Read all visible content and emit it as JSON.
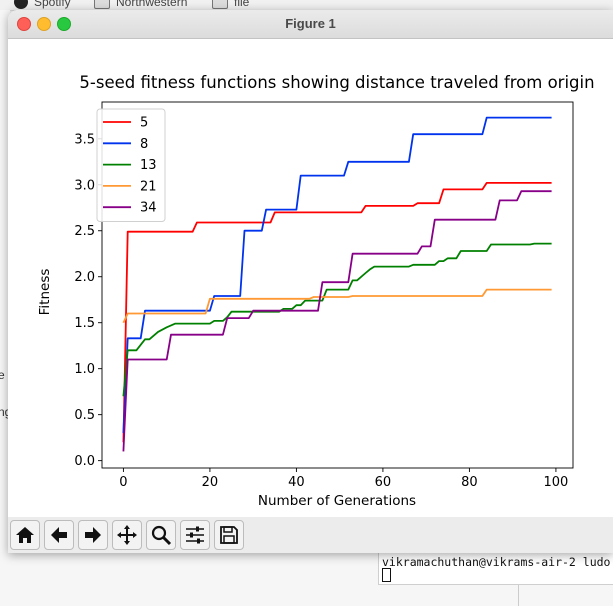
{
  "background": {
    "bookmarks": [
      "Spotify",
      "Northwestern",
      "file"
    ],
    "side_fragments": [
      "e",
      "ng"
    ],
    "terminal_prompt": "vikramachuthan@vikrams-air-2 ludo"
  },
  "window": {
    "title": "Figure 1"
  },
  "toolbar": {
    "buttons": [
      {
        "name": "home-icon"
      },
      {
        "name": "back-arrow-icon"
      },
      {
        "name": "forward-arrow-icon"
      },
      {
        "name": "pan-icon"
      },
      {
        "name": "zoom-icon"
      },
      {
        "name": "configure-subplots-icon"
      },
      {
        "name": "save-icon"
      }
    ]
  },
  "chart_data": {
    "type": "line",
    "title": "5-seed fitness functions showing distance traveled from origin",
    "xlabel": "Number of Generations",
    "ylabel": "Fitness",
    "xlim": [
      -4.95,
      103.95
    ],
    "ylim": [
      -0.08,
      3.9
    ],
    "xticks": [
      0,
      20,
      40,
      60,
      80,
      100
    ],
    "yticks": [
      0.0,
      0.5,
      1.0,
      1.5,
      2.0,
      2.5,
      3.0,
      3.5
    ],
    "grid": false,
    "legend_position": "upper left",
    "series": [
      {
        "name": "5",
        "color": "#ff0000",
        "x": [
          0,
          1,
          16,
          17,
          34,
          35,
          55,
          56,
          67,
          68,
          73,
          74,
          83,
          84,
          99
        ],
        "y": [
          0.2,
          2.49,
          2.49,
          2.59,
          2.59,
          2.7,
          2.7,
          2.77,
          2.77,
          2.8,
          2.8,
          2.95,
          2.95,
          3.02,
          3.02
        ]
      },
      {
        "name": "8",
        "color": "#0033ee",
        "x": [
          0,
          1,
          4,
          5,
          20,
          21,
          27,
          28,
          32,
          33,
          40,
          41,
          51,
          52,
          66,
          67,
          83,
          84,
          99
        ],
        "y": [
          0.3,
          1.33,
          1.33,
          1.63,
          1.63,
          1.79,
          1.79,
          2.5,
          2.5,
          2.73,
          2.73,
          3.1,
          3.1,
          3.25,
          3.25,
          3.55,
          3.55,
          3.73,
          3.73
        ]
      },
      {
        "name": "13",
        "color": "#008000",
        "x": [
          0,
          1,
          3,
          5,
          6,
          8,
          10,
          12,
          20,
          21,
          23,
          24,
          25,
          36,
          37,
          39,
          40,
          41,
          42,
          46,
          47,
          52,
          53,
          54,
          56,
          57,
          58,
          66,
          67,
          72,
          73,
          74,
          75,
          77,
          78,
          84,
          85,
          94,
          95,
          99
        ],
        "y": [
          0.7,
          1.2,
          1.2,
          1.32,
          1.32,
          1.4,
          1.45,
          1.49,
          1.49,
          1.52,
          1.52,
          1.56,
          1.62,
          1.62,
          1.65,
          1.65,
          1.69,
          1.69,
          1.74,
          1.74,
          1.86,
          1.86,
          1.96,
          1.96,
          2.04,
          2.08,
          2.11,
          2.11,
          2.13,
          2.13,
          2.17,
          2.17,
          2.2,
          2.2,
          2.28,
          2.28,
          2.35,
          2.35,
          2.36,
          2.36
        ]
      },
      {
        "name": "21",
        "color": "#ff9933",
        "x": [
          0,
          1,
          19,
          20,
          43,
          44,
          52,
          53,
          83,
          84,
          99
        ],
        "y": [
          1.5,
          1.6,
          1.6,
          1.76,
          1.76,
          1.78,
          1.78,
          1.79,
          1.79,
          1.86,
          1.86
        ]
      },
      {
        "name": "34",
        "color": "#880088",
        "x": [
          0,
          1,
          10,
          11,
          23,
          24,
          29,
          30,
          45,
          46,
          52,
          53,
          68,
          69,
          71,
          72,
          86,
          87,
          91,
          92,
          99
        ],
        "y": [
          0.1,
          1.1,
          1.1,
          1.37,
          1.37,
          1.55,
          1.55,
          1.63,
          1.63,
          1.94,
          1.94,
          2.25,
          2.25,
          2.33,
          2.33,
          2.62,
          2.62,
          2.83,
          2.83,
          2.93,
          2.93
        ]
      }
    ]
  }
}
